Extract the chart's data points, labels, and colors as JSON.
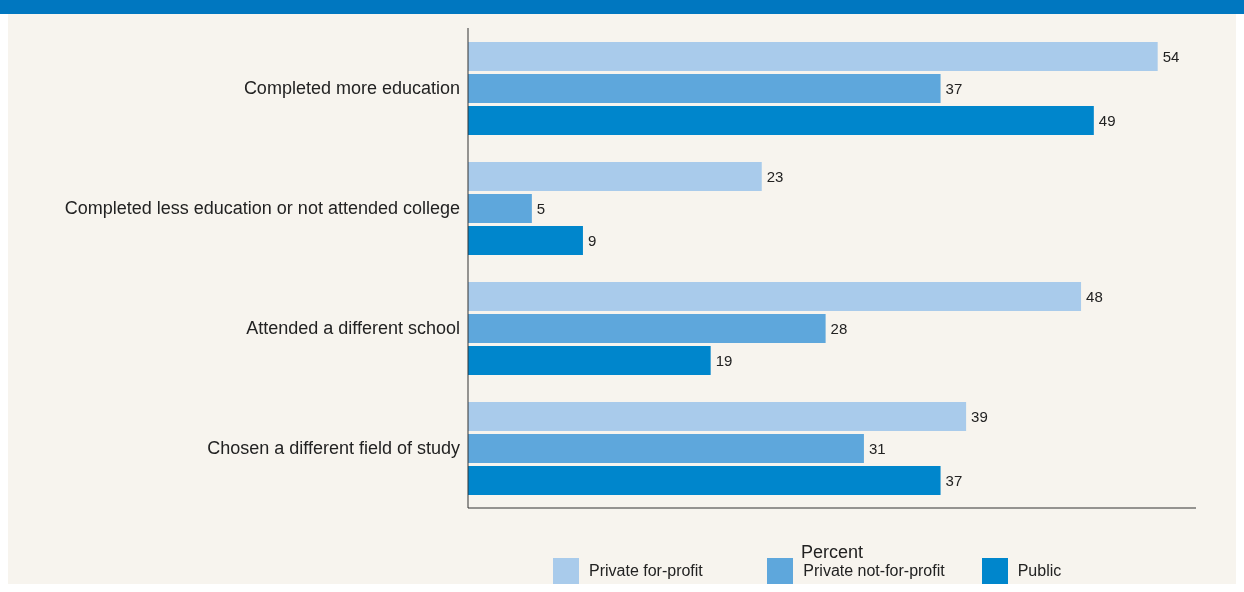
{
  "chart_data": {
    "type": "bar",
    "orientation": "horizontal",
    "xlabel": "Percent",
    "categories": [
      "Completed more education",
      "Completed less education or not attended college",
      "Attended a different school",
      "Chosen a different field of study"
    ],
    "series": [
      {
        "name": "Private for-profit",
        "color": "#a9cbeb",
        "values": [
          54,
          23,
          48,
          39
        ]
      },
      {
        "name": "Private not-for-profit",
        "color": "#5ea7dc",
        "values": [
          37,
          5,
          28,
          31
        ]
      },
      {
        "name": "Public",
        "color": "#0086cc",
        "values": [
          49,
          9,
          19,
          37
        ]
      }
    ],
    "xlim": [
      0,
      57
    ],
    "data_labels": true,
    "legend": "bottom",
    "tick_labels": "y",
    "grid": false
  }
}
